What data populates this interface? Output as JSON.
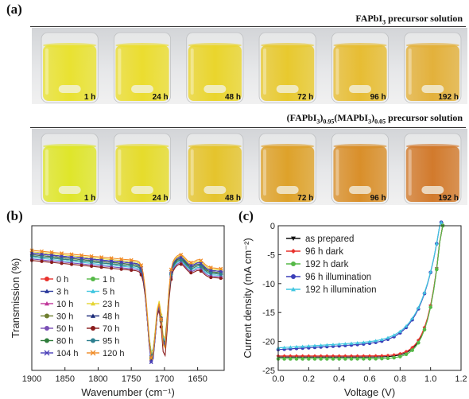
{
  "panel_a": {
    "label": "(a)",
    "row1": {
      "title_html_parts": [
        "FAPbI",
        "3",
        " precursor solution"
      ],
      "bottles": [
        {
          "time": "1 h",
          "color": "#e9e231"
        },
        {
          "time": "24 h",
          "color": "#ebdd2f"
        },
        {
          "time": "48 h",
          "color": "#ead52c"
        },
        {
          "time": "72 h",
          "color": "#e8c92e"
        },
        {
          "time": "96 h",
          "color": "#e7bd33"
        },
        {
          "time": "192 h",
          "color": "#e3b13b"
        }
      ]
    },
    "row2": {
      "title_parts": [
        "(FAPbI",
        "3",
        ")",
        "0.95",
        "(MAPbI",
        "3",
        ")",
        "0.05",
        " precursor solution"
      ],
      "bottles": [
        {
          "time": "1 h",
          "color": "#dfe62a"
        },
        {
          "time": "24 h",
          "color": "#e6dc2b"
        },
        {
          "time": "48 h",
          "color": "#e5c42c"
        },
        {
          "time": "72 h",
          "color": "#dea22a"
        },
        {
          "time": "96 h",
          "color": "#d98f2a"
        },
        {
          "time": "192 h",
          "color": "#d27a2c"
        }
      ]
    }
  },
  "panel_b": {
    "label": "(b)",
    "chart_data": {
      "type": "line",
      "xlabel": "Wavenumber (cm⁻¹)",
      "ylabel": "Transmission (%)",
      "xlim": [
        1900,
        1610
      ],
      "x_reversed": true,
      "x_ticks": [
        1900,
        1850,
        1800,
        1750,
        1700,
        1650
      ],
      "y_ticks_shown": false,
      "legend_placement": "lower-left",
      "series": [
        {
          "name": "0 h",
          "color": "#e8312c",
          "marker": "circle",
          "baseline": 0.2,
          "dip1": 0.82,
          "dip2": 0.64
        },
        {
          "name": "1 h",
          "color": "#55b947",
          "marker": "circle",
          "baseline": 0.21,
          "dip1": 0.8,
          "dip2": 0.62
        },
        {
          "name": "3 h",
          "color": "#2b3a9c",
          "marker": "triangle",
          "baseline": 0.19,
          "dip1": 0.78,
          "dip2": 0.66
        },
        {
          "name": "5 h",
          "color": "#41c6e0",
          "marker": "triangle",
          "baseline": 0.22,
          "dip1": 0.74,
          "dip2": 0.58
        },
        {
          "name": "10 h",
          "color": "#c0379a",
          "marker": "triangle",
          "baseline": 0.2,
          "dip1": 0.79,
          "dip2": 0.63
        },
        {
          "name": "23 h",
          "color": "#e5d532",
          "marker": "triangle",
          "baseline": 0.18,
          "dip1": 0.76,
          "dip2": 0.61
        },
        {
          "name": "30 h",
          "color": "#6e7e2f",
          "marker": "circle",
          "baseline": 0.21,
          "dip1": 0.81,
          "dip2": 0.65
        },
        {
          "name": "48 h",
          "color": "#1a2a78",
          "marker": "triangle",
          "baseline": 0.19,
          "dip1": 0.83,
          "dip2": 0.67
        },
        {
          "name": "50 h",
          "color": "#7a4fb5",
          "marker": "circle",
          "baseline": 0.23,
          "dip1": 0.79,
          "dip2": 0.6
        },
        {
          "name": "70 h",
          "color": "#8a1b1b",
          "marker": "circle",
          "baseline": 0.24,
          "dip1": 0.77,
          "dip2": 0.68
        },
        {
          "name": "80 h",
          "color": "#2f7d3b",
          "marker": "circle",
          "baseline": 0.2,
          "dip1": 0.8,
          "dip2": 0.62
        },
        {
          "name": "95 h",
          "color": "#2d7f8f",
          "marker": "circle",
          "baseline": 0.21,
          "dip1": 0.78,
          "dip2": 0.64
        },
        {
          "name": "104 h",
          "color": "#4a3fb8",
          "marker": "cross",
          "baseline": 0.19,
          "dip1": 0.84,
          "dip2": 0.65
        },
        {
          "name": "120 h",
          "color": "#f08a24",
          "marker": "cross",
          "baseline": 0.17,
          "dip1": 0.81,
          "dip2": 0.7
        }
      ]
    }
  },
  "panel_c": {
    "label": "(c)",
    "chart_data": {
      "type": "line",
      "xlabel": "Voltage (V)",
      "ylabel": "Current density (mA cm⁻²)",
      "xlim": [
        0.0,
        1.2
      ],
      "ylim": [
        -25,
        0
      ],
      "x_ticks": [
        0.0,
        0.2,
        0.4,
        0.6,
        0.8,
        1.0,
        1.2
      ],
      "y_ticks": [
        0,
        -5,
        -10,
        -15,
        -20,
        -25
      ],
      "legend_placement": "top-left",
      "series": [
        {
          "name": "as prepared",
          "color": "#111111",
          "marker": "triangle-down",
          "jsc": -22.7,
          "voc": 1.07,
          "n": 1.6
        },
        {
          "name": "96 h dark",
          "color": "#e8312c",
          "marker": "diamond",
          "jsc": -22.5,
          "voc": 1.07,
          "n": 1.6
        },
        {
          "name": "192 h dark",
          "color": "#55b947",
          "marker": "circle",
          "jsc": -23.0,
          "voc": 1.07,
          "n": 1.6
        },
        {
          "name": "96 h illumination",
          "color": "#3b3fb8",
          "marker": "circle",
          "jsc": -21.4,
          "voc": 1.06,
          "n": 3.2
        },
        {
          "name": "192 h illumination",
          "color": "#41c6e0",
          "marker": "triangle",
          "jsc": -21.1,
          "voc": 1.06,
          "n": 3.6
        }
      ]
    }
  }
}
